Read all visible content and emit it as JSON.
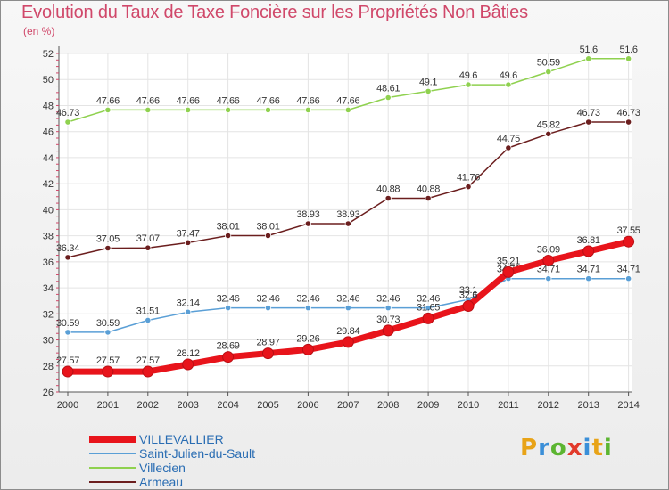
{
  "title": "Evolution du Taux de Taxe Foncière sur les Propriétés Non Bâties",
  "unit_label": "(en %)",
  "logo": {
    "text": "Proxiti",
    "letters": [
      "P",
      "r",
      "o",
      "x",
      "i",
      "t",
      "i"
    ],
    "letter_colors": [
      "#e8a317",
      "#3b8fd8",
      "#5cb531",
      "#e23a2b",
      "#3b8fd8",
      "#e8a317",
      "#5cb531"
    ]
  },
  "colors": {
    "title": "#d0486a",
    "axis": "#555555",
    "grid": "#e4e4e4",
    "tick_text": "#333333",
    "value_label": "#333333"
  },
  "chart_data": {
    "type": "line",
    "title": "Evolution du Taux de Taxe Foncière sur les Propriétés Non Bâties",
    "ylabel": "(en %)",
    "xlabel": "",
    "x": [
      "2000",
      "2001",
      "2002",
      "2003",
      "2004",
      "2005",
      "2006",
      "2007",
      "2008",
      "2009",
      "2010",
      "2011",
      "2012",
      "2013",
      "2014"
    ],
    "ylim": [
      26,
      52
    ],
    "yticks": [
      26,
      28,
      30,
      32,
      34,
      36,
      38,
      40,
      42,
      44,
      46,
      48,
      50,
      52
    ],
    "ytick_labels": [
      "26",
      "28",
      "30",
      "32",
      "34",
      "36",
      "38",
      "40",
      "42",
      "44",
      "46",
      "48",
      "50",
      "52"
    ],
    "grid": true,
    "legend_position": "bottom-left",
    "series": [
      {
        "name": "VILLEVALLIER",
        "color": "#e8141b",
        "emphasis": true,
        "values": [
          27.57,
          27.57,
          27.57,
          28.12,
          28.69,
          28.97,
          29.26,
          29.84,
          30.73,
          31.65,
          32.6,
          35.21,
          36.09,
          36.81,
          37.55
        ],
        "labels": [
          "27.57",
          "27.57",
          "27.57",
          "28.12",
          "28.69",
          "28.97",
          "29.26",
          "29.84",
          "30.73",
          "31.65",
          "32.6",
          "35.21",
          "36.09",
          "36.81",
          "37.55"
        ]
      },
      {
        "name": "Saint-Julien-du-Sault",
        "color": "#5a9fd6",
        "emphasis": false,
        "values": [
          30.59,
          30.59,
          31.51,
          32.14,
          32.46,
          32.46,
          32.46,
          32.46,
          32.46,
          32.46,
          33.1,
          34.71,
          34.71,
          34.71,
          34.71
        ],
        "labels": [
          "30.59",
          "30.59",
          "31.51",
          "32.14",
          "32.46",
          "32.46",
          "32.46",
          "32.46",
          "32.46",
          "32.46",
          "33.1",
          "34.71",
          "34.71",
          "34.71",
          "34.71"
        ]
      },
      {
        "name": "Villecien",
        "color": "#8fd14f",
        "emphasis": false,
        "values": [
          46.73,
          47.66,
          47.66,
          47.66,
          47.66,
          47.66,
          47.66,
          47.66,
          48.61,
          49.1,
          49.6,
          49.6,
          50.59,
          51.6,
          51.6
        ],
        "labels": [
          "46.73",
          "47.66",
          "47.66",
          "47.66",
          "47.66",
          "47.66",
          "47.66",
          "47.66",
          "48.61",
          "49.1",
          "49.6",
          "49.6",
          "50.59",
          "51.6",
          "51.6"
        ]
      },
      {
        "name": "Armeau",
        "color": "#6b1e1e",
        "emphasis": false,
        "values": [
          36.34,
          37.05,
          37.07,
          37.47,
          38.01,
          38.01,
          38.93,
          38.93,
          40.88,
          40.88,
          41.76,
          44.75,
          45.82,
          46.73,
          46.73
        ],
        "labels": [
          "36.34",
          "37.05",
          "37.07",
          "37.47",
          "38.01",
          "38.01",
          "38.93",
          "38.93",
          "40.88",
          "40.88",
          "41.76",
          "44.75",
          "45.82",
          "46.73",
          "46.73"
        ]
      }
    ]
  }
}
